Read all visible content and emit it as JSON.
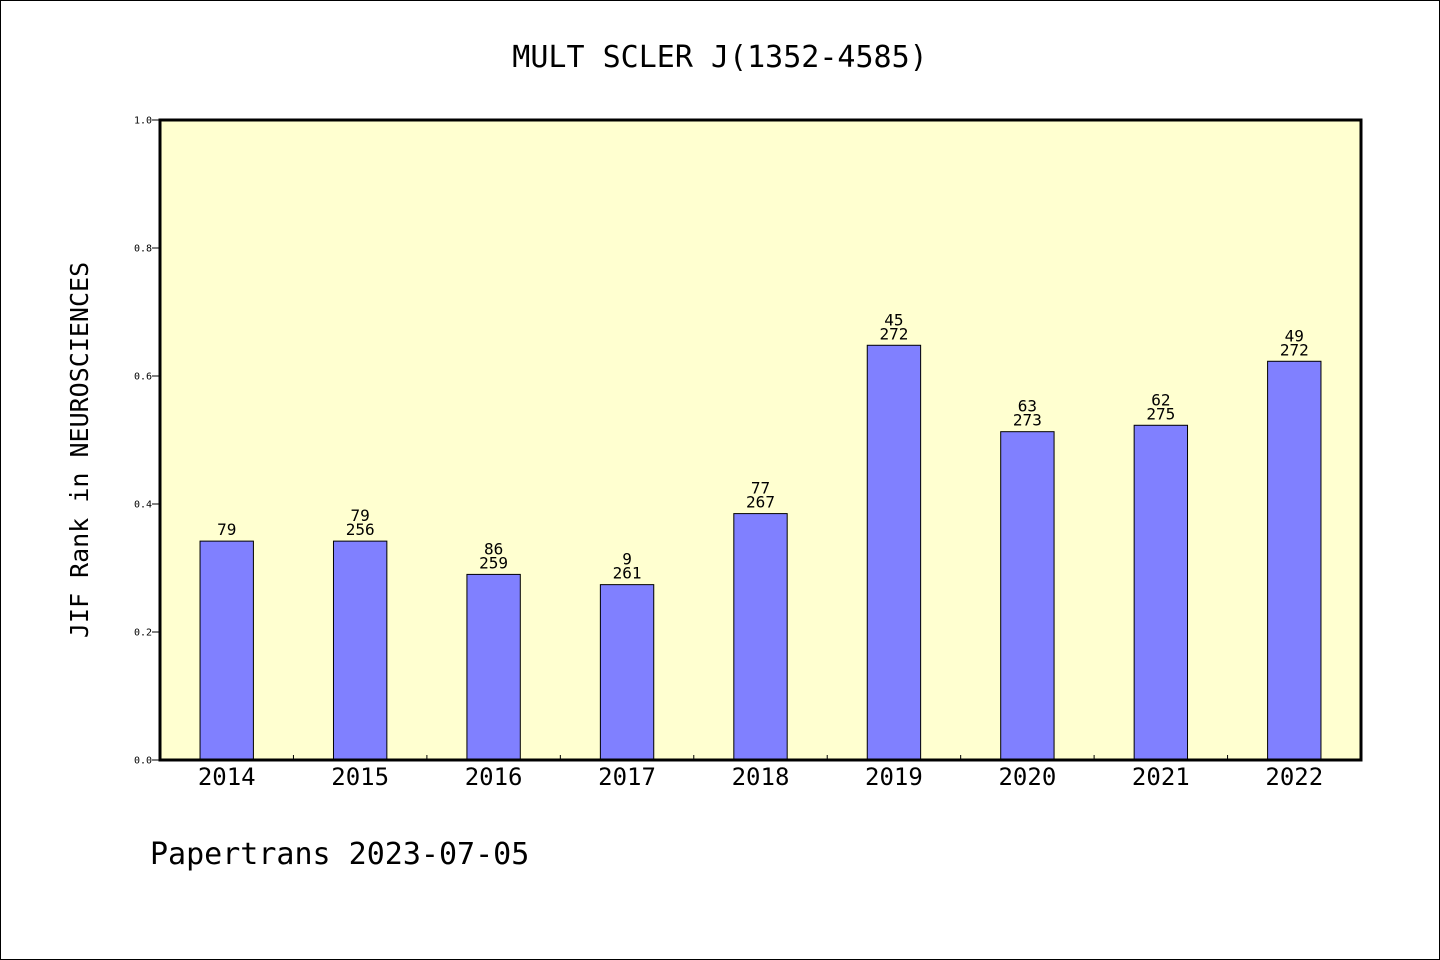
{
  "chart_data": {
    "type": "bar",
    "title": "MULT SCLER J(1352-4585)",
    "xlabel": "",
    "ylabel": "JIF Rank in NEUROSCIENCES",
    "ylim": [
      0,
      1.0
    ],
    "yticks": [
      "0.0",
      "0.2",
      "0.4",
      "0.6",
      "0.8",
      "1.0"
    ],
    "grid": false,
    "colors": {
      "bar": "#8080ff",
      "plot_bg": "#ffffd0",
      "axes": "#000000"
    },
    "categories": [
      "2014",
      "2015",
      "2016",
      "2017",
      "2018",
      "2019",
      "2020",
      "2021",
      "2022"
    ],
    "values": [
      0.342,
      0.342,
      0.29,
      0.274,
      0.385,
      0.648,
      0.513,
      0.523,
      0.623
    ],
    "bar_labels": [
      [
        "79"
      ],
      [
        "79",
        "256"
      ],
      [
        "86",
        "259"
      ],
      [
        "9",
        "261"
      ],
      [
        "77",
        "267"
      ],
      [
        "45",
        "272"
      ],
      [
        "63",
        "273"
      ],
      [
        "62",
        "275"
      ],
      [
        "49",
        "272"
      ]
    ]
  },
  "footer": "Papertrans 2023-07-05"
}
